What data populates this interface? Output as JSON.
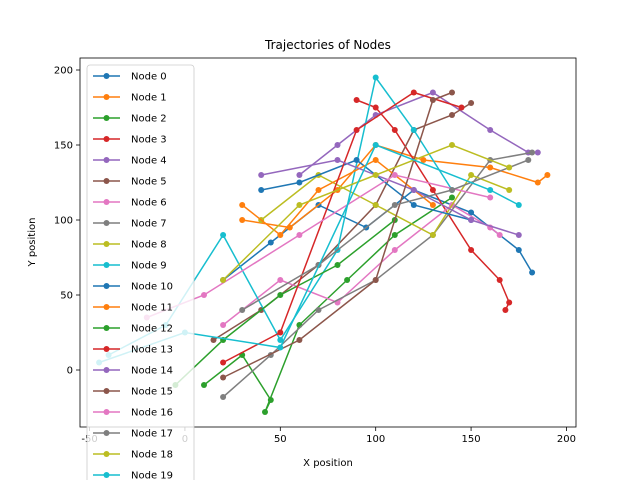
{
  "chart_data": {
    "type": "line",
    "title": "Trajectories of Nodes",
    "xlabel": "X position",
    "ylabel": "Y position",
    "xlim": [
      -55,
      205
    ],
    "ylim": [
      -38,
      208
    ],
    "xticks": [
      -50,
      0,
      50,
      100,
      150,
      200
    ],
    "yticks": [
      0,
      50,
      100,
      150,
      200
    ],
    "grid": false,
    "legend_placement": "upper-left",
    "colors": [
      "#1f77b4",
      "#ff7f0e",
      "#2ca02c",
      "#d62728",
      "#9467bd",
      "#8c564b",
      "#e377c2",
      "#7f7f7f",
      "#bcbd22",
      "#17becf"
    ],
    "series": [
      {
        "name": "Node 0",
        "color": "#1f77b4",
        "x": [
          20,
          45,
          70,
          95,
          120,
          150,
          175,
          182
        ],
        "y": [
          60,
          85,
          110,
          95,
          120,
          105,
          80,
          65
        ]
      },
      {
        "name": "Node 1",
        "color": "#ff7f0e",
        "x": [
          30,
          55,
          80,
          100,
          125,
          160,
          185,
          190
        ],
        "y": [
          100,
          95,
          120,
          150,
          140,
          135,
          125,
          130
        ]
      },
      {
        "name": "Node 2",
        "color": "#2ca02c",
        "x": [
          10,
          30,
          45,
          42,
          60,
          85,
          110,
          140
        ],
        "y": [
          -10,
          10,
          -20,
          -28,
          30,
          60,
          90,
          115
        ]
      },
      {
        "name": "Node 3",
        "color": "#d62728",
        "x": [
          90,
          100,
          110,
          130,
          150,
          165,
          170,
          168
        ],
        "y": [
          180,
          175,
          160,
          120,
          80,
          60,
          45,
          40
        ]
      },
      {
        "name": "Node 4",
        "color": "#9467bd",
        "x": [
          60,
          80,
          100,
          130,
          160,
          180,
          185
        ],
        "y": [
          130,
          150,
          170,
          185,
          160,
          145,
          145
        ]
      },
      {
        "name": "Node 5",
        "color": "#8c564b",
        "x": [
          15,
          40,
          70,
          100,
          120,
          140,
          150
        ],
        "y": [
          20,
          40,
          70,
          110,
          160,
          170,
          178
        ]
      },
      {
        "name": "Node 6",
        "color": "#e377c2",
        "x": [
          20,
          50,
          80,
          110,
          140,
          160,
          165
        ],
        "y": [
          30,
          60,
          45,
          80,
          110,
          95,
          90
        ]
      },
      {
        "name": "Node 7",
        "color": "#7f7f7f",
        "x": [
          20,
          45,
          70,
          100,
          130,
          160,
          182
        ],
        "y": [
          -18,
          10,
          40,
          60,
          90,
          140,
          145
        ]
      },
      {
        "name": "Node 8",
        "color": "#bcbd22",
        "x": [
          40,
          70,
          100,
          130,
          150,
          170
        ],
        "y": [
          100,
          130,
          110,
          90,
          130,
          120
        ]
      },
      {
        "name": "Node 9",
        "color": "#17becf",
        "x": [
          -40,
          -10,
          20,
          50,
          80,
          100,
          120,
          140
        ],
        "y": [
          10,
          30,
          90,
          20,
          80,
          195,
          160,
          120
        ]
      },
      {
        "name": "Node 10",
        "color": "#1f77b4",
        "x": [
          40,
          60,
          90,
          120,
          150
        ],
        "y": [
          120,
          125,
          140,
          110,
          100
        ]
      },
      {
        "name": "Node 11",
        "color": "#ff7f0e",
        "x": [
          30,
          50,
          70,
          100,
          130
        ],
        "y": [
          110,
          90,
          120,
          140,
          110
        ]
      },
      {
        "name": "Node 12",
        "color": "#2ca02c",
        "x": [
          -5,
          20,
          50,
          80,
          110
        ],
        "y": [
          -10,
          20,
          50,
          70,
          100
        ]
      },
      {
        "name": "Node 13",
        "color": "#d62728",
        "x": [
          20,
          50,
          90,
          120,
          145
        ],
        "y": [
          5,
          25,
          160,
          185,
          175
        ]
      },
      {
        "name": "Node 14",
        "color": "#9467bd",
        "x": [
          40,
          80,
          120,
          150,
          175
        ],
        "y": [
          130,
          140,
          120,
          100,
          90
        ]
      },
      {
        "name": "Node 15",
        "color": "#8c564b",
        "x": [
          20,
          60,
          100,
          130,
          140
        ],
        "y": [
          -5,
          20,
          60,
          180,
          185
        ]
      },
      {
        "name": "Node 16",
        "color": "#e377c2",
        "x": [
          -20,
          10,
          60,
          110,
          160
        ],
        "y": [
          35,
          50,
          90,
          130,
          115
        ]
      },
      {
        "name": "Node 17",
        "color": "#7f7f7f",
        "x": [
          30,
          70,
          110,
          140,
          180
        ],
        "y": [
          40,
          70,
          110,
          120,
          140
        ]
      },
      {
        "name": "Node 18",
        "color": "#bcbd22",
        "x": [
          20,
          60,
          100,
          140,
          170
        ],
        "y": [
          60,
          110,
          130,
          150,
          135
        ]
      },
      {
        "name": "Node 19",
        "color": "#17becf",
        "x": [
          -45,
          0,
          50,
          100,
          160,
          175
        ],
        "y": [
          5,
          25,
          15,
          150,
          120,
          110
        ]
      }
    ]
  }
}
